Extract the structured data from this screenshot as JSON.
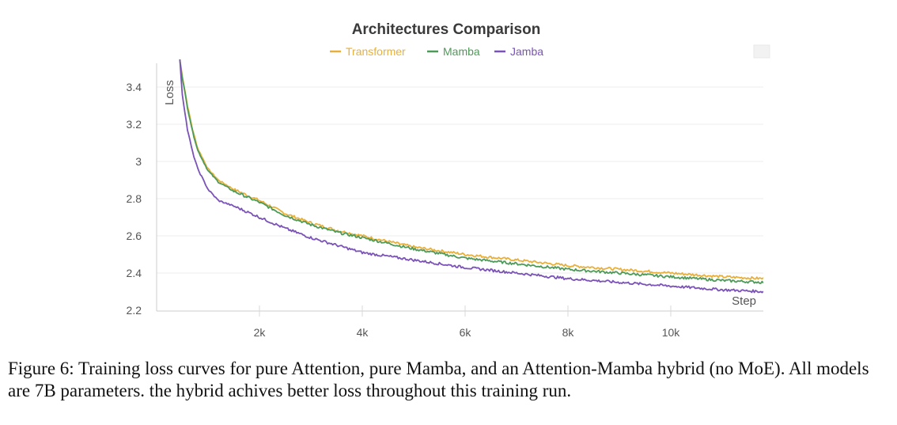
{
  "chart_data": {
    "type": "line",
    "title": "Architectures Comparison",
    "xlabel": "Step",
    "ylabel": "Loss",
    "xlim": [
      0,
      11800
    ],
    "ylim": [
      2.2,
      3.5
    ],
    "x_ticks": [
      2000,
      4000,
      6000,
      8000,
      10000
    ],
    "x_tick_labels": [
      "2k",
      "4k",
      "6k",
      "8k",
      "10k"
    ],
    "y_ticks": [
      2.2,
      2.4,
      2.6,
      2.8,
      3.0,
      3.2,
      3.4
    ],
    "y_tick_labels": [
      "2.2",
      "2.4",
      "2.6",
      "2.8",
      "3",
      "3.2",
      "3.4"
    ],
    "grid": "horizontal",
    "legend_position": "top-center",
    "x": [
      450,
      500,
      600,
      700,
      800,
      1000,
      1200,
      1500,
      2000,
      2500,
      3000,
      3500,
      4000,
      5000,
      6000,
      7000,
      8000,
      9000,
      10000,
      11000,
      11800
    ],
    "series": [
      {
        "name": "Transformer",
        "color": "#e8b03a",
        "values": [
          3.55,
          3.46,
          3.3,
          3.17,
          3.07,
          2.96,
          2.9,
          2.85,
          2.79,
          2.72,
          2.67,
          2.63,
          2.6,
          2.54,
          2.5,
          2.47,
          2.44,
          2.42,
          2.4,
          2.38,
          2.37
        ]
      },
      {
        "name": "Mamba",
        "color": "#4e9a58",
        "values": [
          3.55,
          3.45,
          3.29,
          3.16,
          3.06,
          2.95,
          2.89,
          2.84,
          2.78,
          2.71,
          2.66,
          2.62,
          2.59,
          2.53,
          2.48,
          2.45,
          2.42,
          2.4,
          2.38,
          2.36,
          2.35
        ]
      },
      {
        "name": "Jamba",
        "color": "#7a52b8",
        "values": [
          3.55,
          3.36,
          3.17,
          3.05,
          2.96,
          2.85,
          2.79,
          2.76,
          2.7,
          2.64,
          2.59,
          2.55,
          2.51,
          2.47,
          2.43,
          2.4,
          2.37,
          2.35,
          2.33,
          2.31,
          2.3
        ]
      }
    ]
  },
  "caption": "Figure 6: Training loss curves for pure Attention, pure Mamba, and an Attention-Mamba hybrid (no MoE). All models are 7B parameters. the hybrid achives better loss throughout this training run."
}
